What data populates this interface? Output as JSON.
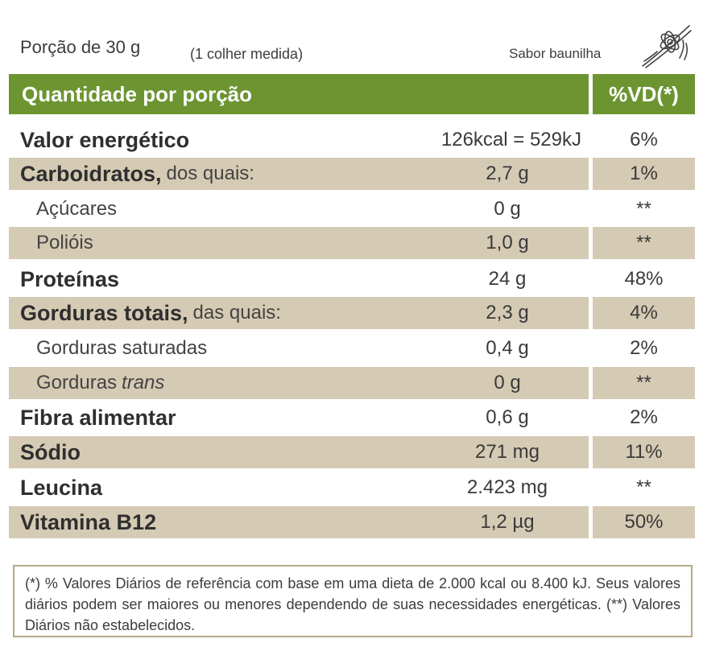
{
  "header": {
    "portion": "Porção de 30 g",
    "measure": "(1 colher medida)",
    "flavor": "Sabor baunilha",
    "flavor_icon": "vanilla-flower-icon"
  },
  "table": {
    "col_quantity": "Quantidade por porção",
    "col_vd": "%VD(*)",
    "rows": [
      {
        "label": "Valor energético",
        "note": "",
        "amount": "126kcal = 529kJ",
        "vd": "6%"
      },
      {
        "label": "Carboidratos,",
        "note": "dos quais:",
        "amount": "2,7 g",
        "vd": "1%"
      },
      {
        "label": "Açúcares",
        "note": "",
        "amount": "0 g",
        "vd": "**"
      },
      {
        "label": "Polióis",
        "note": "",
        "amount": "1,0 g",
        "vd": "**"
      },
      {
        "label": "Proteínas",
        "note": "",
        "amount": "24 g",
        "vd": "48%"
      },
      {
        "label": "Gorduras totais,",
        "note": "das quais:",
        "amount": "2,3 g",
        "vd": "4%"
      },
      {
        "label": "Gorduras saturadas",
        "note": "",
        "amount": "0,4 g",
        "vd": "2%"
      },
      {
        "label": "Gorduras",
        "note": "trans",
        "amount": "0 g",
        "vd": "**"
      },
      {
        "label": "Fibra alimentar",
        "note": "",
        "amount": "0,6 g",
        "vd": "2%"
      },
      {
        "label": "Sódio",
        "note": "",
        "amount": "271 mg",
        "vd": "11%"
      },
      {
        "label": "Leucina",
        "note": "",
        "amount": "2.423 mg",
        "vd": "**"
      },
      {
        "label": "Vitamina B12",
        "note": "",
        "amount": "1,2 µg",
        "vd": "50%"
      }
    ]
  },
  "footnote": "(*) % Valores Diários de referência com base em uma dieta de 2.000 kcal ou 8.400 kJ. Seus valores diários podem ser maiores ou menores dependendo de suas necessidades energéticas. (**) Valores Diários não estabelecidos.",
  "colors": {
    "header_green": "#6c9431",
    "shade": "#d5cab3",
    "border": "#b7a98a"
  }
}
